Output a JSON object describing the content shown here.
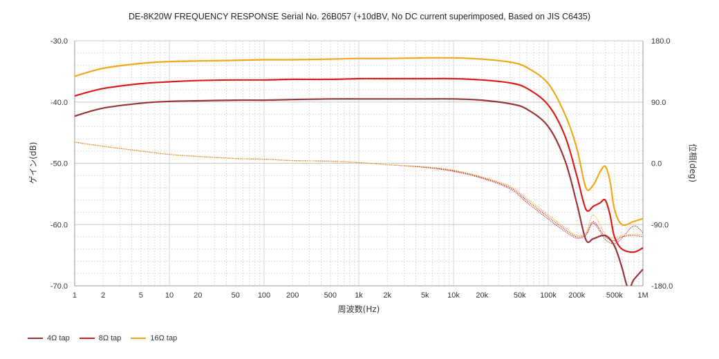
{
  "chart_data": {
    "type": "line",
    "title": "DE-8K20W FREQUENCY RESPONSE Serial No. 26B057 (+10dBV,  No DC current superimposed,  Based on JIS C6435)",
    "xlabel": "周波数(Hz)",
    "ylabel": "ゲイン(dB)",
    "y2label": "位相(deg)",
    "xscale": "log",
    "xlim": [
      1,
      1000000
    ],
    "ylim": [
      -70,
      -30
    ],
    "y2lim": [
      -180,
      180
    ],
    "x_ticks": [
      "1",
      "2",
      "5",
      "10",
      "20",
      "50",
      "100",
      "200",
      "500",
      "1k",
      "2k",
      "5k",
      "10k",
      "20k",
      "50k",
      "100k",
      "200k",
      "500k",
      "1M"
    ],
    "y_ticks": [
      "-30.0",
      "-40.0",
      "-50.0",
      "-60.0",
      "-70.0"
    ],
    "y2_ticks": [
      "180.0",
      "90.0",
      "0.0",
      "-90.0",
      "-180.0"
    ],
    "grid": true,
    "legend_position": "bottom-left",
    "colors": {
      "4ohm": "#9a3333",
      "8ohm": "#dd1a1a",
      "16ohm": "#f0a818"
    },
    "series": [
      {
        "name": "4Ω tap",
        "axis": "gain",
        "color": "#9a3333",
        "x": [
          1,
          2,
          5,
          10,
          20,
          50,
          100,
          200,
          500,
          1000,
          2000,
          5000,
          10000,
          20000,
          40000,
          60000,
          100000,
          150000,
          200000,
          250000,
          300000,
          400000,
          500000,
          600000,
          700000,
          800000,
          1000000
        ],
        "y": [
          -42.3,
          -41.0,
          -40.2,
          -39.9,
          -39.8,
          -39.7,
          -39.7,
          -39.6,
          -39.5,
          -39.5,
          -39.5,
          -39.5,
          -39.5,
          -39.7,
          -40.3,
          -41.2,
          -44.0,
          -49.5,
          -56.5,
          -62.5,
          -62.3,
          -61.8,
          -63.5,
          -67.0,
          -70.5,
          -69.0,
          -67.3
        ]
      },
      {
        "name": "8Ω tap",
        "axis": "gain",
        "color": "#dd1a1a",
        "x": [
          1,
          2,
          5,
          10,
          20,
          50,
          100,
          200,
          500,
          1000,
          2000,
          5000,
          10000,
          20000,
          40000,
          60000,
          100000,
          150000,
          200000,
          250000,
          300000,
          350000,
          400000,
          450000,
          500000,
          600000,
          800000,
          1000000
        ],
        "y": [
          -39.0,
          -37.8,
          -37.0,
          -36.7,
          -36.5,
          -36.4,
          -36.4,
          -36.3,
          -36.3,
          -36.2,
          -36.2,
          -36.2,
          -36.2,
          -36.4,
          -36.9,
          -37.8,
          -40.5,
          -45.5,
          -52.0,
          -57.5,
          -57.0,
          -56.5,
          -56.0,
          -58.5,
          -62.0,
          -64.0,
          -64.5,
          -63.8
        ]
      },
      {
        "name": "16Ω tap",
        "axis": "gain",
        "color": "#f0a818",
        "x": [
          1,
          2,
          5,
          10,
          20,
          50,
          100,
          200,
          500,
          1000,
          2000,
          5000,
          10000,
          20000,
          40000,
          60000,
          100000,
          150000,
          200000,
          250000,
          300000,
          350000,
          400000,
          450000,
          500000,
          600000,
          800000,
          1000000
        ],
        "y": [
          -35.8,
          -34.5,
          -33.7,
          -33.4,
          -33.3,
          -33.2,
          -33.1,
          -33.1,
          -33.0,
          -32.9,
          -32.9,
          -32.8,
          -32.8,
          -33.0,
          -33.5,
          -34.4,
          -37.0,
          -42.0,
          -47.5,
          -54.0,
          -53.5,
          -51.5,
          -50.5,
          -53.0,
          -57.5,
          -60.0,
          -59.5,
          -59.0
        ]
      },
      {
        "name": "4Ω tap phase",
        "axis": "phase",
        "color": "#9a3333",
        "x": [
          1,
          2,
          5,
          10,
          20,
          50,
          100,
          200,
          500,
          1000,
          2000,
          5000,
          10000,
          20000,
          40000,
          60000,
          100000,
          150000,
          200000,
          250000,
          300000,
          400000,
          500000,
          600000,
          800000,
          1000000
        ],
        "y": [
          31,
          25,
          18,
          13,
          10,
          7,
          6,
          4,
          3,
          1,
          -2,
          -6,
          -12,
          -22,
          -38,
          -58,
          -82,
          -100,
          -110,
          -106,
          -88,
          -112,
          -118,
          -110,
          -92,
          -102
        ]
      },
      {
        "name": "8Ω tap phase",
        "axis": "phase",
        "color": "#dd1a1a",
        "x": [
          1,
          2,
          5,
          10,
          20,
          50,
          100,
          200,
          500,
          1000,
          2000,
          5000,
          10000,
          20000,
          40000,
          60000,
          100000,
          150000,
          200000,
          250000,
          300000,
          400000,
          500000,
          600000,
          800000,
          1000000
        ],
        "y": [
          31,
          25,
          18,
          13,
          10,
          7,
          6,
          4,
          3,
          1,
          -2,
          -6,
          -11,
          -21,
          -36,
          -55,
          -79,
          -97,
          -108,
          -104,
          -86,
          -108,
          -114,
          -108,
          -106,
          -108
        ]
      },
      {
        "name": "16Ω tap phase",
        "axis": "phase",
        "color": "#f0a818",
        "x": [
          1,
          2,
          5,
          10,
          20,
          50,
          100,
          200,
          500,
          1000,
          2000,
          5000,
          10000,
          20000,
          40000,
          60000,
          100000,
          150000,
          200000,
          250000,
          300000,
          400000,
          500000,
          600000,
          800000,
          1000000
        ],
        "y": [
          31,
          25,
          18,
          13,
          10,
          7,
          6,
          4,
          3,
          1,
          -2,
          -5,
          -10,
          -20,
          -34,
          -52,
          -76,
          -94,
          -106,
          -102,
          -76,
          -104,
          -110,
          -106,
          -104,
          -105
        ]
      }
    ],
    "legend": [
      {
        "label": "4Ω tap",
        "color": "#9a3333"
      },
      {
        "label": "8Ω tap",
        "color": "#dd1a1a"
      },
      {
        "label": "16Ω tap",
        "color": "#f0a818"
      }
    ]
  }
}
